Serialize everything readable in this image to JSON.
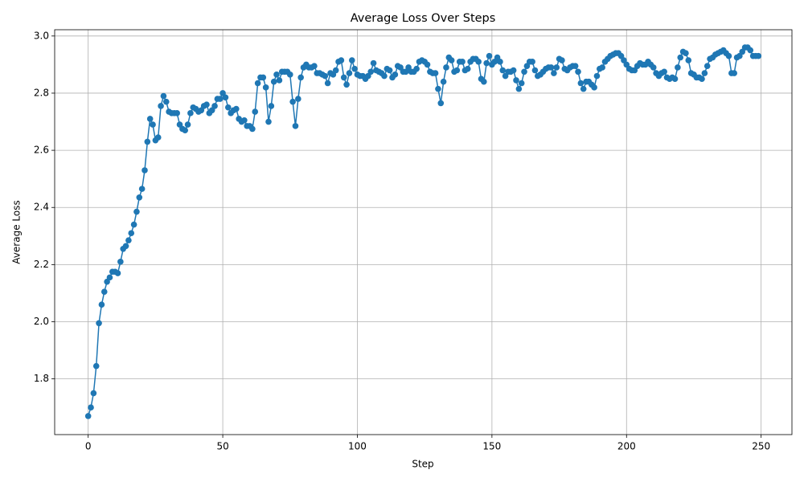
{
  "chart_data": {
    "type": "line",
    "title": "Average Loss Over Steps",
    "x_label": "Step",
    "y_label": "Average Loss",
    "color": "#1f77b4",
    "markers": true,
    "grid": true,
    "xlim": [
      -12.45,
      261.45
    ],
    "ylim": [
      1.605,
      3.022
    ],
    "xticks": [
      0,
      50,
      100,
      150,
      200,
      250
    ],
    "yticks": [
      1.8,
      {
        "value": 2,
        "label": "2.0"
      },
      2.2,
      2.4,
      2.6,
      2.8,
      {
        "value": 3,
        "label": "3.0"
      }
    ],
    "x": [
      0,
      1,
      2,
      3,
      4,
      5,
      6,
      7,
      8,
      9,
      10,
      11,
      12,
      13,
      14,
      15,
      16,
      17,
      18,
      19,
      20,
      21,
      22,
      23,
      24,
      25,
      26,
      27,
      28,
      29,
      30,
      31,
      32,
      33,
      34,
      35,
      36,
      37,
      38,
      39,
      40,
      41,
      42,
      43,
      44,
      45,
      46,
      47,
      48,
      49,
      50,
      51,
      52,
      53,
      54,
      55,
      56,
      57,
      58,
      59,
      60,
      61,
      62,
      63,
      64,
      65,
      66,
      67,
      68,
      69,
      70,
      71,
      72,
      73,
      74,
      75,
      76,
      77,
      78,
      79,
      80,
      81,
      82,
      83,
      84,
      85,
      86,
      87,
      88,
      89,
      90,
      91,
      92,
      93,
      94,
      95,
      96,
      97,
      98,
      99,
      100,
      101,
      102,
      103,
      104,
      105,
      106,
      107,
      108,
      109,
      110,
      111,
      112,
      113,
      114,
      115,
      116,
      117,
      118,
      119,
      120,
      121,
      122,
      123,
      124,
      125,
      126,
      127,
      128,
      129,
      130,
      131,
      132,
      133,
      134,
      135,
      136,
      137,
      138,
      139,
      140,
      141,
      142,
      143,
      144,
      145,
      146,
      147,
      148,
      149,
      150,
      151,
      152,
      153,
      154,
      155,
      156,
      157,
      158,
      159,
      160,
      161,
      162,
      163,
      164,
      165,
      166,
      167,
      168,
      169,
      170,
      171,
      172,
      173,
      174,
      175,
      176,
      177,
      178,
      179,
      180,
      181,
      182,
      183,
      184,
      185,
      186,
      187,
      188,
      189,
      190,
      191,
      192,
      193,
      194,
      195,
      196,
      197,
      198,
      199,
      200,
      201,
      202,
      203,
      204,
      205,
      206,
      207,
      208,
      209,
      210,
      211,
      212,
      213,
      214,
      215,
      216,
      217,
      218,
      219,
      220,
      221,
      222,
      223,
      224,
      225,
      226,
      227,
      228,
      229,
      230,
      231,
      232,
      233,
      234,
      235,
      236,
      237,
      238,
      239,
      240,
      241,
      242,
      243,
      244,
      245,
      246,
      247,
      248,
      249
    ],
    "values": [
      1.67,
      1.7,
      1.75,
      1.845,
      1.995,
      2.06,
      2.105,
      2.14,
      2.155,
      2.175,
      2.175,
      2.17,
      2.21,
      2.255,
      2.265,
      2.285,
      2.31,
      2.34,
      2.385,
      2.435,
      2.465,
      2.53,
      2.63,
      2.71,
      2.69,
      2.635,
      2.645,
      2.755,
      2.79,
      2.77,
      2.735,
      2.73,
      2.73,
      2.73,
      2.69,
      2.675,
      2.67,
      2.69,
      2.73,
      2.75,
      2.745,
      2.735,
      2.74,
      2.755,
      2.76,
      2.73,
      2.74,
      2.755,
      2.78,
      2.78,
      2.8,
      2.785,
      2.75,
      2.73,
      2.74,
      2.745,
      2.71,
      2.7,
      2.705,
      2.685,
      2.685,
      2.675,
      2.735,
      2.835,
      2.855,
      2.855,
      2.82,
      2.7,
      2.755,
      2.84,
      2.865,
      2.845,
      2.875,
      2.875,
      2.875,
      2.865,
      2.77,
      2.685,
      2.78,
      2.855,
      2.89,
      2.9,
      2.89,
      2.89,
      2.895,
      2.87,
      2.87,
      2.865,
      2.86,
      2.835,
      2.87,
      2.865,
      2.88,
      2.91,
      2.915,
      2.855,
      2.83,
      2.87,
      2.915,
      2.885,
      2.865,
      2.86,
      2.86,
      2.85,
      2.86,
      2.875,
      2.905,
      2.88,
      2.875,
      2.87,
      2.86,
      2.885,
      2.88,
      2.855,
      2.865,
      2.895,
      2.89,
      2.875,
      2.875,
      2.89,
      2.875,
      2.875,
      2.885,
      2.91,
      2.915,
      2.91,
      2.9,
      2.875,
      2.87,
      2.87,
      2.815,
      2.765,
      2.84,
      2.89,
      2.925,
      2.915,
      2.875,
      2.88,
      2.91,
      2.91,
      2.88,
      2.885,
      2.91,
      2.92,
      2.92,
      2.91,
      2.85,
      2.84,
      2.905,
      2.93,
      2.9,
      2.91,
      2.925,
      2.91,
      2.88,
      2.86,
      2.875,
      2.875,
      2.88,
      2.845,
      2.815,
      2.835,
      2.875,
      2.895,
      2.91,
      2.91,
      2.88,
      2.86,
      2.865,
      2.875,
      2.885,
      2.89,
      2.89,
      2.87,
      2.89,
      2.92,
      2.915,
      2.885,
      2.88,
      2.89,
      2.895,
      2.895,
      2.875,
      2.835,
      2.815,
      2.84,
      2.84,
      2.83,
      2.82,
      2.86,
      2.885,
      2.89,
      2.91,
      2.92,
      2.93,
      2.935,
      2.94,
      2.94,
      2.93,
      2.915,
      2.9,
      2.885,
      2.88,
      2.88,
      2.895,
      2.905,
      2.9,
      2.9,
      2.91,
      2.9,
      2.89,
      2.87,
      2.86,
      2.87,
      2.875,
      2.855,
      2.85,
      2.855,
      2.85,
      2.89,
      2.925,
      2.945,
      2.94,
      2.915,
      2.87,
      2.865,
      2.855,
      2.855,
      2.85,
      2.87,
      2.895,
      2.92,
      2.925,
      2.935,
      2.94,
      2.945,
      2.95,
      2.94,
      2.93,
      2.87,
      2.87,
      2.925,
      2.93,
      2.945,
      2.96,
      2.96,
      2.95,
      2.93,
      2.93,
      2.93
    ]
  }
}
